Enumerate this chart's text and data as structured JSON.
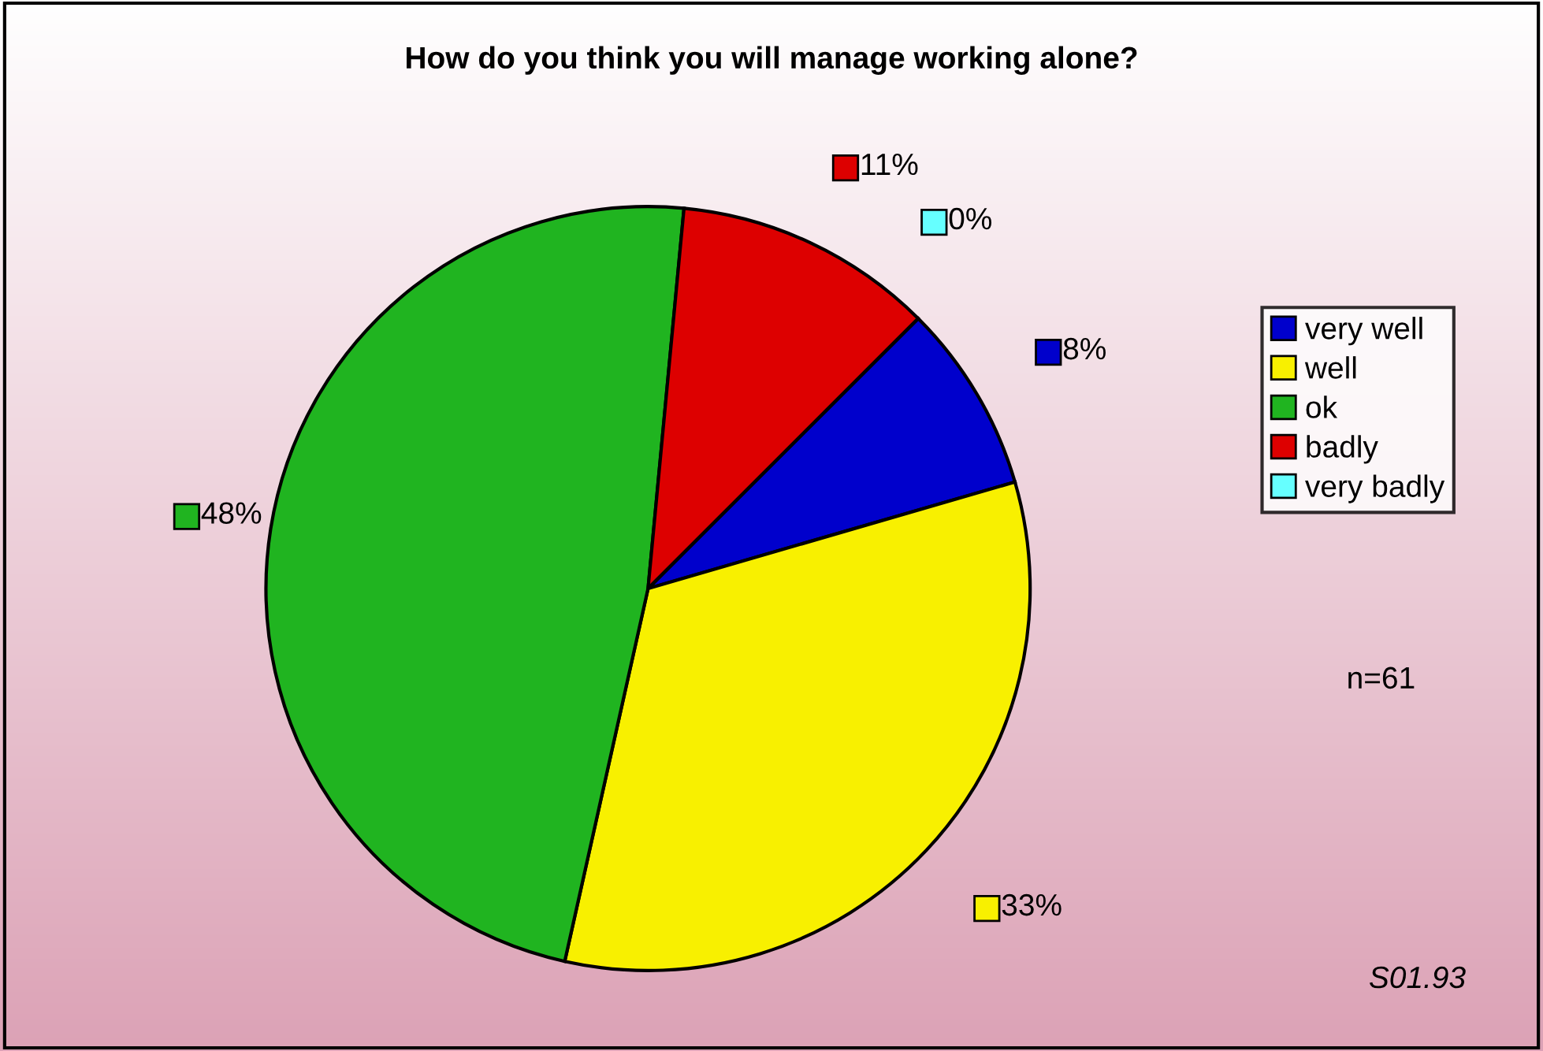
{
  "chart_data": {
    "type": "pie",
    "title": "How do you think you will manage working alone?",
    "categories": [
      "very well",
      "well",
      "ok",
      "badly",
      "very badly"
    ],
    "values": [
      8,
      33,
      48,
      11,
      0
    ],
    "colors": [
      "#0000cc",
      "#f8f000",
      "#20b420",
      "#dd0000",
      "#66ffff"
    ],
    "value_labels": [
      "8%",
      "33%",
      "48%",
      "11%",
      "0%"
    ],
    "legend": "right",
    "annotations": [
      "n=61",
      "S01.93"
    ]
  }
}
